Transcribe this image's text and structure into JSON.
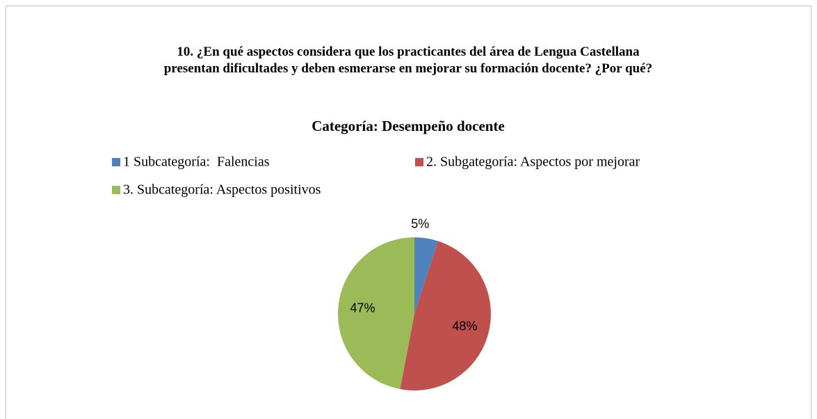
{
  "chart_data": {
    "type": "pie",
    "title": "10. ¿En qué aspectos considera que los practicantes del área de Lengua Castellana presentan dificultades y deben esmerarse en mejorar su formación docente? ¿Por qué?",
    "subtitle": "Categoría: Desempeño docente",
    "categories": [
      "1 Subcategoría:  Falencias",
      "2. Subgategoría: Aspectos por mejorar",
      "3. Subcategoría: Aspectos positivos"
    ],
    "values": [
      5,
      48,
      47
    ],
    "value_labels": [
      "5%",
      "48%",
      "47%"
    ],
    "colors": [
      "#4f81bd",
      "#c0504d",
      "#9bbb59"
    ],
    "legend": "top"
  }
}
